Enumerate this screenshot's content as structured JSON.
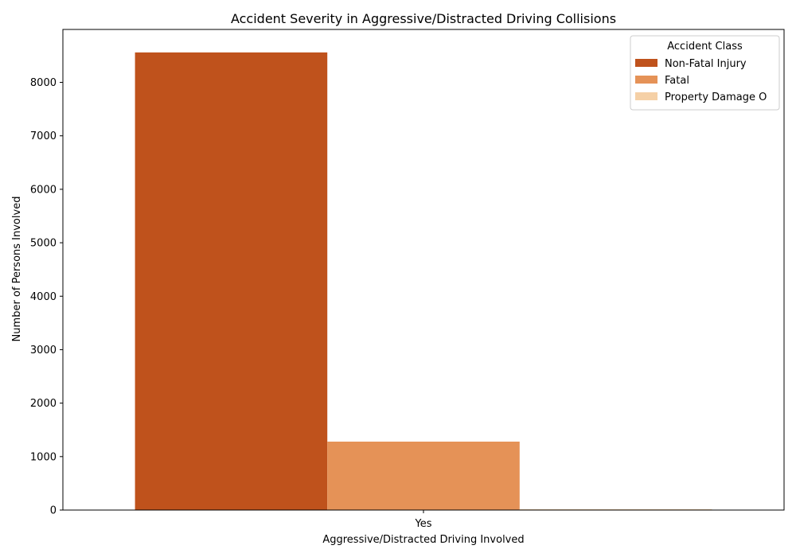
{
  "chart_data": {
    "type": "bar",
    "title": "Accident Severity in Aggressive/Distracted Driving Collisions",
    "xlabel": "Aggressive/Distracted Driving Involved",
    "ylabel": "Number of Persons Involved",
    "categories": [
      "Yes"
    ],
    "ylim": [
      0,
      8990
    ],
    "yticks": [
      0,
      1000,
      2000,
      3000,
      4000,
      5000,
      6000,
      7000,
      8000
    ],
    "grid": false,
    "legend": {
      "title": "Accident Class",
      "placement": "top-right"
    },
    "series": [
      {
        "name": "Non-Fatal Injury",
        "color": "#bf521c",
        "values": [
          8560
        ]
      },
      {
        "name": "Fatal",
        "color": "#e59257",
        "values": [
          1280
        ]
      },
      {
        "name": "Property Damage O",
        "color": "#f5d0a6",
        "values": [
          3
        ]
      }
    ]
  }
}
